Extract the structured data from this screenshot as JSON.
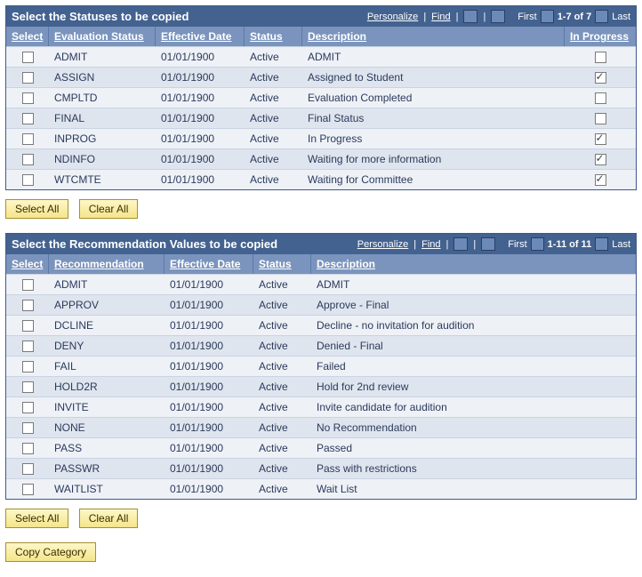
{
  "colors": {
    "titlebar_bg": "#436290",
    "header_bg": "#7a94bd",
    "row_even": "#eef1f6",
    "row_odd": "#dfe5ee",
    "text": "#2b3a5c",
    "button_bg_top": "#fdf7c8",
    "button_bg_bot": "#f5e58a",
    "button_border": "#a88f2c"
  },
  "common": {
    "personalize": "Personalize",
    "find": "Find",
    "first": "First",
    "last": "Last",
    "select_col": "Select",
    "eff_date_col": "Effective Date",
    "status_col": "Status",
    "desc_col": "Description",
    "select_all": "Select All",
    "clear_all": "Clear All"
  },
  "copy_button": "Copy Category",
  "statuses": {
    "title": "Select the Statuses to be copied",
    "range": "1-7 of 7",
    "code_col": "Evaluation Status",
    "inprog_col": "In Progress",
    "rows": [
      {
        "code": "ADMIT",
        "date": "01/01/1900",
        "status": "Active",
        "desc": "ADMIT",
        "inprog": false,
        "selected": false
      },
      {
        "code": "ASSIGN",
        "date": "01/01/1900",
        "status": "Active",
        "desc": "Assigned to Student",
        "inprog": true,
        "selected": false
      },
      {
        "code": "CMPLTD",
        "date": "01/01/1900",
        "status": "Active",
        "desc": "Evaluation Completed",
        "inprog": false,
        "selected": false
      },
      {
        "code": "FINAL",
        "date": "01/01/1900",
        "status": "Active",
        "desc": "Final Status",
        "inprog": false,
        "selected": false
      },
      {
        "code": "INPROG",
        "date": "01/01/1900",
        "status": "Active",
        "desc": "In Progress",
        "inprog": true,
        "selected": false
      },
      {
        "code": "NDINFO",
        "date": "01/01/1900",
        "status": "Active",
        "desc": "Waiting for more information",
        "inprog": true,
        "selected": false
      },
      {
        "code": "WTCMTE",
        "date": "01/01/1900",
        "status": "Active",
        "desc": "Waiting for Committee",
        "inprog": true,
        "selected": false
      }
    ]
  },
  "recs": {
    "title": "Select the Recommendation Values to be copied",
    "range": "1-11 of 11",
    "code_col": "Recommendation",
    "rows": [
      {
        "code": "ADMIT",
        "date": "01/01/1900",
        "status": "Active",
        "desc": "ADMIT",
        "selected": false
      },
      {
        "code": "APPROV",
        "date": "01/01/1900",
        "status": "Active",
        "desc": "Approve - Final",
        "selected": false
      },
      {
        "code": "DCLINE",
        "date": "01/01/1900",
        "status": "Active",
        "desc": "Decline - no invitation for audition",
        "selected": false
      },
      {
        "code": "DENY",
        "date": "01/01/1900",
        "status": "Active",
        "desc": "Denied - Final",
        "selected": false
      },
      {
        "code": "FAIL",
        "date": "01/01/1900",
        "status": "Active",
        "desc": "Failed",
        "selected": false
      },
      {
        "code": "HOLD2R",
        "date": "01/01/1900",
        "status": "Active",
        "desc": "Hold for 2nd review",
        "selected": false
      },
      {
        "code": "INVITE",
        "date": "01/01/1900",
        "status": "Active",
        "desc": "Invite candidate for audition",
        "selected": false
      },
      {
        "code": "NONE",
        "date": "01/01/1900",
        "status": "Active",
        "desc": "No Recommendation",
        "selected": false
      },
      {
        "code": "PASS",
        "date": "01/01/1900",
        "status": "Active",
        "desc": "Passed",
        "selected": false
      },
      {
        "code": "PASSWR",
        "date": "01/01/1900",
        "status": "Active",
        "desc": "Pass with restrictions",
        "selected": false
      },
      {
        "code": "WAITLIST",
        "date": "01/01/1900",
        "status": "Active",
        "desc": "Wait List",
        "selected": false
      }
    ]
  }
}
